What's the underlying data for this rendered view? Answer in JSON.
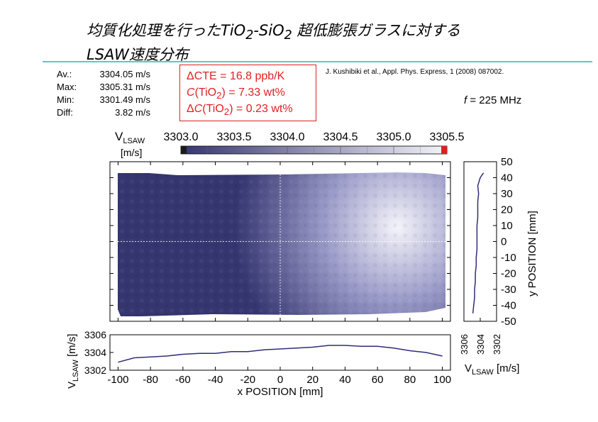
{
  "title": {
    "line1_a": "均質化処理を行ったTiO",
    "line1_sub1": "2",
    "line1_b": "-SiO",
    "line1_sub2": "2",
    "line1_c": " 超低膨張ガラスに対する",
    "line2": "LSAW速度分布"
  },
  "stats": [
    {
      "label": "Av.:",
      "value": "3304.05 m/s"
    },
    {
      "label": "Max:",
      "value": "3305.31 m/s"
    },
    {
      "label": "Min:",
      "value": "3301.49 m/s"
    },
    {
      "label": "Diff:",
      "value": "3.82 m/s"
    }
  ],
  "cte_box": {
    "line1": "ΔCTE = 16.8 ppb/K",
    "line2_italic": "C",
    "line2_a": "(TiO",
    "line2_sub": "2",
    "line2_b": ") = 7.33 wt%",
    "line3_prefix": "Δ",
    "line3_italic": "C",
    "line3_a": "(TiO",
    "line3_sub": "2",
    "line3_b": ") = 0.23 wt%"
  },
  "citation": "J. Kushibiki et al., Appl. Phys. Express, 1 (2008) 087002.",
  "frequency": {
    "symbol": "f",
    "text": " = 225 MHz"
  },
  "colors": {
    "accent_rule": "#58c7d8",
    "map_dark": "#353570",
    "map_light": "#f4f4fa",
    "line_series": "#2e2e7a",
    "max_marker": "#e02020",
    "min_marker": "#1a1a1a"
  },
  "chart_data": [
    {
      "type": "heatmap",
      "title": "",
      "colorbar": {
        "label_main": "V",
        "label_sub": "LSAW",
        "unit": "[m/s]",
        "range": [
          3303.0,
          3305.5
        ],
        "ticks": [
          "3303.0",
          "3303.5",
          "3304.0",
          "3304.5",
          "3305.0",
          "3305.5"
        ]
      },
      "xlim": [
        -105,
        105
      ],
      "ylim": [
        -50,
        50
      ],
      "grid": true,
      "description_zone": "velocity highest (lightest) around x = 30 to 60 mm, y = 0 to 10 mm; lower toward the left edge"
    },
    {
      "type": "line",
      "name": "bottom-profile",
      "xlabel": "x POSITION [mm]",
      "ylabel_main": "V",
      "ylabel_sub": "LSAW",
      "ylabel_unit": " [m/s]",
      "xlim": [
        -105,
        105
      ],
      "ylim": [
        3302,
        3306
      ],
      "xticks": [
        "-100",
        "-80",
        "-60",
        "-40",
        "-20",
        "0",
        "20",
        "40",
        "60",
        "80",
        "100"
      ],
      "yticks": [
        "3306",
        "3304",
        "3302"
      ],
      "x": [
        -100,
        -90,
        -80,
        -70,
        -60,
        -50,
        -40,
        -30,
        -20,
        -10,
        0,
        10,
        20,
        30,
        40,
        50,
        60,
        70,
        80,
        90,
        100
      ],
      "values": [
        3302.9,
        3303.4,
        3303.5,
        3303.6,
        3303.8,
        3303.9,
        3303.9,
        3304.1,
        3304.1,
        3304.3,
        3304.4,
        3304.5,
        3304.6,
        3304.8,
        3304.8,
        3304.7,
        3304.7,
        3304.5,
        3304.2,
        3304.0,
        3303.6
      ]
    },
    {
      "type": "line",
      "name": "right-profile",
      "ylabel": "y POSITION [mm]",
      "xlabel_main": "V",
      "xlabel_sub": "LSAW",
      "xlabel_unit": " [m/s]",
      "ylim": [
        -50,
        50
      ],
      "xlim": [
        3302,
        3306
      ],
      "yticks": [
        "50",
        "40",
        "30",
        "20",
        "10",
        "0",
        "-10",
        "-20",
        "-30",
        "-40",
        "-50"
      ],
      "xticks": [
        "3306",
        "3304",
        "3302"
      ],
      "y": [
        -45,
        -40,
        -35,
        -30,
        -25,
        -20,
        -15,
        -10,
        -5,
        0,
        5,
        10,
        15,
        20,
        25,
        30,
        35,
        40,
        43
      ],
      "values": [
        3304.9,
        3304.8,
        3304.7,
        3304.7,
        3304.6,
        3304.6,
        3304.5,
        3304.5,
        3304.4,
        3304.4,
        3304.4,
        3304.4,
        3304.3,
        3304.3,
        3304.3,
        3304.2,
        3304.3,
        3304.0,
        3303.6
      ]
    }
  ]
}
